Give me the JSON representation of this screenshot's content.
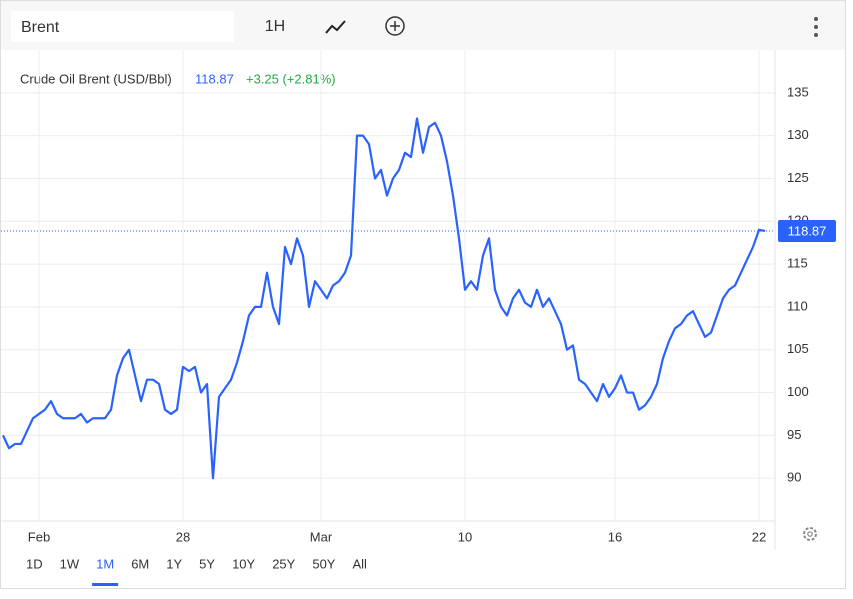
{
  "toolbar": {
    "symbol": "Brent",
    "interval": "1H"
  },
  "chart_data": {
    "type": "line",
    "title": "Crude Oil Brent (USD/Bbl)",
    "price": 118.87,
    "change": "+3.25 (+2.81%)",
    "categories": [
      null,
      null,
      null,
      null,
      null,
      null,
      "Feb",
      null,
      null,
      null,
      null,
      null,
      null,
      null,
      null,
      null,
      null,
      null,
      null,
      null,
      null,
      null,
      null,
      null,
      null,
      null,
      null,
      null,
      null,
      null,
      "28",
      null,
      null,
      null,
      null,
      null,
      null,
      null,
      null,
      null,
      null,
      null,
      null,
      null,
      null,
      null,
      null,
      null,
      null,
      null,
      null,
      null,
      null,
      "Mar",
      null,
      null,
      null,
      null,
      null,
      null,
      null,
      null,
      null,
      null,
      null,
      null,
      null,
      null,
      null,
      null,
      null,
      null,
      null,
      null,
      null,
      null,
      null,
      "10",
      null,
      null,
      null,
      null,
      null,
      null,
      null,
      null,
      null,
      null,
      null,
      null,
      null,
      null,
      null,
      null,
      null,
      null,
      null,
      null,
      null,
      null,
      null,
      null,
      "16",
      null,
      null,
      null,
      null,
      null,
      null,
      null,
      null,
      null,
      null,
      null,
      null,
      null,
      null,
      null,
      null,
      null,
      null,
      null,
      null,
      null,
      null,
      null,
      "22",
      null
    ],
    "series": [
      {
        "name": "Brent",
        "color": "#2962ff",
        "values": [
          95,
          93.5,
          94,
          94,
          95.5,
          97,
          97.5,
          98,
          99,
          97.5,
          97,
          97,
          97,
          97.5,
          96.5,
          97,
          97,
          97,
          98,
          102,
          104,
          105,
          102,
          99,
          101.5,
          101.5,
          101,
          98,
          97.5,
          98,
          103,
          102.5,
          103,
          100,
          101,
          90,
          99.5,
          100.5,
          101.5,
          103.5,
          106,
          109,
          110,
          110,
          114,
          110,
          108,
          117,
          115,
          118,
          116,
          110,
          113,
          112,
          111,
          112.5,
          113,
          114,
          116,
          130,
          130,
          129,
          125,
          126,
          123,
          125,
          126,
          128,
          127.5,
          132,
          128,
          131,
          131.5,
          130,
          127,
          123,
          118,
          112,
          113,
          112,
          116,
          118,
          112,
          110,
          109,
          111,
          112,
          110.5,
          110,
          112,
          110,
          111,
          109.5,
          108,
          105,
          105.5,
          101.5,
          101,
          100,
          99,
          101,
          99.5,
          100.5,
          102,
          100,
          100,
          98,
          98.5,
          99.5,
          101,
          104,
          106,
          107.5,
          108,
          109,
          109.5,
          108,
          106.5,
          107,
          109,
          111,
          112,
          112.5,
          114,
          115.5,
          117,
          119,
          118.87
        ]
      }
    ],
    "ylim": [
      85,
      140
    ],
    "yticks": [
      90,
      95,
      100,
      105,
      110,
      115,
      120,
      125,
      130,
      135
    ],
    "grid": true
  },
  "ranges": [
    "1D",
    "1W",
    "1M",
    "6M",
    "1Y",
    "5Y",
    "10Y",
    "25Y",
    "50Y",
    "All"
  ],
  "selected_range": "1M"
}
